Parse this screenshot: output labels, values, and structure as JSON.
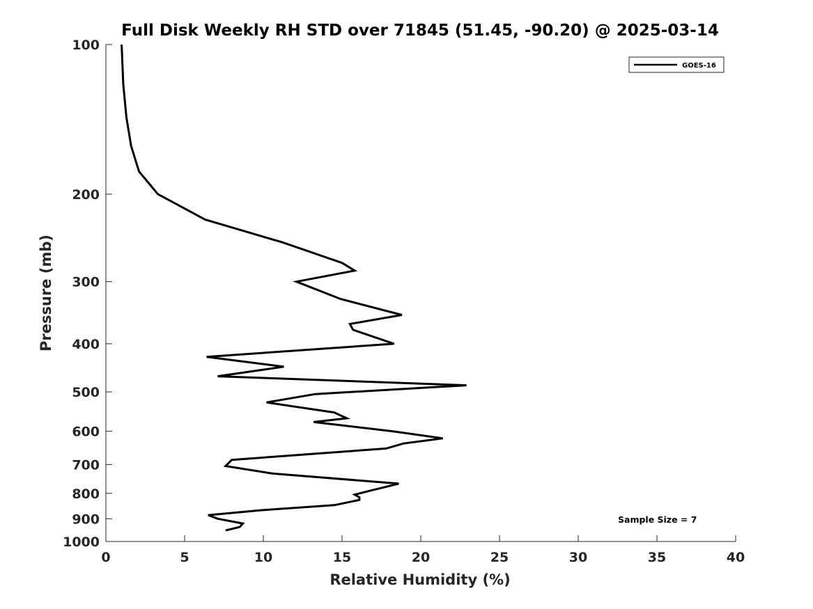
{
  "chart_data": {
    "type": "line",
    "title": "Full Disk Weekly RH STD over 71845 (51.45, -90.20) @ 2025-03-14",
    "xlabel": "Relative Humidity (%)",
    "ylabel": "Pressure (mb)",
    "xlim": [
      0,
      40
    ],
    "ylim": [
      100,
      1000
    ],
    "yscale": "log",
    "y_reversed": true,
    "grid": false,
    "legend_position": "top-right",
    "xticks": [
      0,
      5,
      10,
      15,
      20,
      25,
      30,
      35,
      40
    ],
    "xtick_labels": [
      "0",
      "5",
      "10",
      "15",
      "20",
      "25",
      "30",
      "35",
      "40"
    ],
    "yticks": [
      100,
      200,
      300,
      400,
      500,
      600,
      700,
      800,
      900,
      1000
    ],
    "ytick_labels": [
      "100",
      "200",
      "300",
      "400",
      "500",
      "600",
      "700",
      "800",
      "900",
      "1000"
    ],
    "series": [
      {
        "name": "GOES-16",
        "color": "#000000",
        "x": [
          1.0,
          1.1,
          1.3,
          1.6,
          2.1,
          3.3,
          6.3,
          11.2,
          15.0,
          15.8,
          12.1,
          14.9,
          18.8,
          15.5,
          15.7,
          18.3,
          6.4,
          11.3,
          7.1,
          22.9,
          13.3,
          10.2,
          14.5,
          15.3,
          13.2,
          18.2,
          21.4,
          18.9,
          17.8,
          8.0,
          7.6,
          10.6,
          18.6,
          16.8,
          15.8,
          16.1,
          16.1,
          14.5,
          9.9,
          6.5,
          7.1,
          8.7,
          8.5,
          7.6
        ],
        "y": [
          100,
          120,
          140,
          160,
          180,
          200,
          225,
          250,
          275,
          285,
          300,
          325,
          350,
          365,
          375,
          400,
          425,
          445,
          465,
          485,
          505,
          525,
          550,
          565,
          575,
          600,
          620,
          635,
          650,
          685,
          705,
          730,
          765,
          790,
          805,
          815,
          825,
          845,
          865,
          885,
          900,
          920,
          935,
          950
        ]
      }
    ],
    "annotations": [
      "Sample Size = 7"
    ]
  }
}
